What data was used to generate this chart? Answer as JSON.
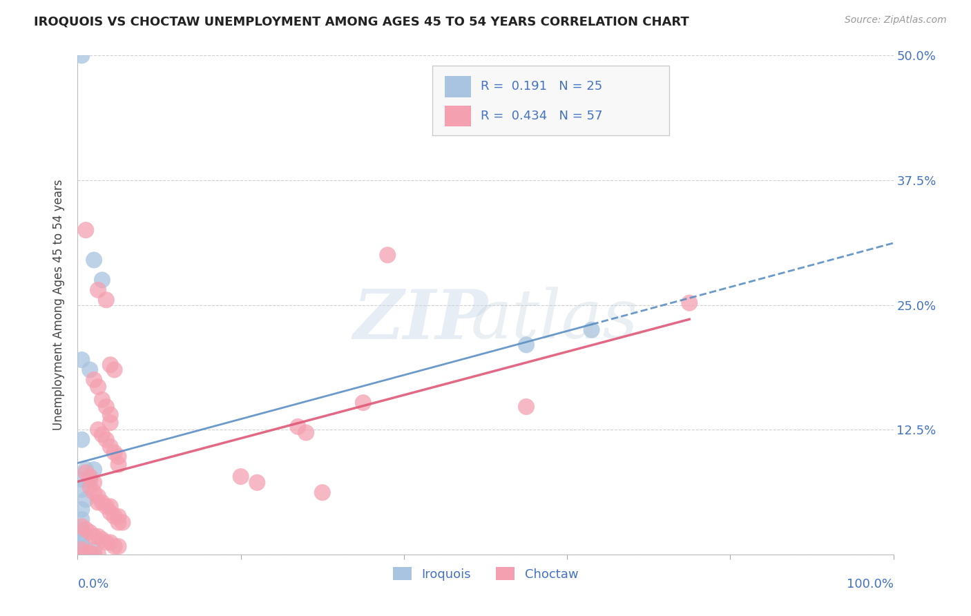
{
  "title": "IROQUOIS VS CHOCTAW UNEMPLOYMENT AMONG AGES 45 TO 54 YEARS CORRELATION CHART",
  "source": "Source: ZipAtlas.com",
  "ylabel": "Unemployment Among Ages 45 to 54 years",
  "xlim": [
    0.0,
    1.0
  ],
  "ylim": [
    0.0,
    0.5
  ],
  "ytick_positions": [
    0.0,
    0.125,
    0.25,
    0.375,
    0.5
  ],
  "yticklabels_right": [
    "",
    "12.5%",
    "25.0%",
    "37.5%",
    "50.0%"
  ],
  "background_color": "#ffffff",
  "grid_color": "#d0d0d0",
  "iroquois_color": "#a8c4e0",
  "choctaw_color": "#f4a0b0",
  "iroquois_line_color": "#5b8ec4",
  "choctaw_line_color": "#e05878",
  "iroquois_R": 0.191,
  "iroquois_N": 25,
  "choctaw_R": 0.434,
  "choctaw_N": 57,
  "label_color_blue": "#4472c4",
  "iroquois_points": [
    [
      0.005,
      0.5
    ],
    [
      0.02,
      0.295
    ],
    [
      0.03,
      0.275
    ],
    [
      0.005,
      0.195
    ],
    [
      0.015,
      0.185
    ],
    [
      0.005,
      0.115
    ],
    [
      0.01,
      0.085
    ],
    [
      0.02,
      0.085
    ],
    [
      0.005,
      0.075
    ],
    [
      0.015,
      0.075
    ],
    [
      0.005,
      0.065
    ],
    [
      0.01,
      0.055
    ],
    [
      0.005,
      0.045
    ],
    [
      0.005,
      0.035
    ],
    [
      0.005,
      0.025
    ],
    [
      0.005,
      0.02
    ],
    [
      0.005,
      0.015
    ],
    [
      0.005,
      0.01
    ],
    [
      0.005,
      0.005
    ],
    [
      0.005,
      0.0
    ],
    [
      0.01,
      0.0
    ],
    [
      0.015,
      0.0
    ],
    [
      0.02,
      0.005
    ],
    [
      0.55,
      0.21
    ],
    [
      0.63,
      0.225
    ]
  ],
  "choctaw_points": [
    [
      0.01,
      0.325
    ],
    [
      0.025,
      0.265
    ],
    [
      0.035,
      0.255
    ],
    [
      0.04,
      0.19
    ],
    [
      0.045,
      0.185
    ],
    [
      0.02,
      0.175
    ],
    [
      0.025,
      0.168
    ],
    [
      0.03,
      0.155
    ],
    [
      0.035,
      0.148
    ],
    [
      0.04,
      0.14
    ],
    [
      0.04,
      0.132
    ],
    [
      0.025,
      0.125
    ],
    [
      0.03,
      0.12
    ],
    [
      0.035,
      0.115
    ],
    [
      0.04,
      0.108
    ],
    [
      0.045,
      0.102
    ],
    [
      0.05,
      0.098
    ],
    [
      0.05,
      0.09
    ],
    [
      0.01,
      0.082
    ],
    [
      0.015,
      0.078
    ],
    [
      0.02,
      0.072
    ],
    [
      0.015,
      0.068
    ],
    [
      0.02,
      0.062
    ],
    [
      0.025,
      0.058
    ],
    [
      0.025,
      0.052
    ],
    [
      0.03,
      0.052
    ],
    [
      0.035,
      0.048
    ],
    [
      0.04,
      0.048
    ],
    [
      0.04,
      0.042
    ],
    [
      0.045,
      0.038
    ],
    [
      0.05,
      0.038
    ],
    [
      0.05,
      0.032
    ],
    [
      0.055,
      0.032
    ],
    [
      0.005,
      0.028
    ],
    [
      0.01,
      0.025
    ],
    [
      0.015,
      0.022
    ],
    [
      0.02,
      0.018
    ],
    [
      0.025,
      0.018
    ],
    [
      0.03,
      0.015
    ],
    [
      0.035,
      0.012
    ],
    [
      0.04,
      0.012
    ],
    [
      0.045,
      0.008
    ],
    [
      0.05,
      0.008
    ],
    [
      0.005,
      0.005
    ],
    [
      0.01,
      0.002
    ],
    [
      0.015,
      0.002
    ],
    [
      0.02,
      0.0
    ],
    [
      0.025,
      0.0
    ],
    [
      0.2,
      0.078
    ],
    [
      0.22,
      0.072
    ],
    [
      0.27,
      0.128
    ],
    [
      0.28,
      0.122
    ],
    [
      0.3,
      0.062
    ],
    [
      0.35,
      0.152
    ],
    [
      0.38,
      0.3
    ],
    [
      0.55,
      0.148
    ],
    [
      0.75,
      0.252
    ]
  ]
}
